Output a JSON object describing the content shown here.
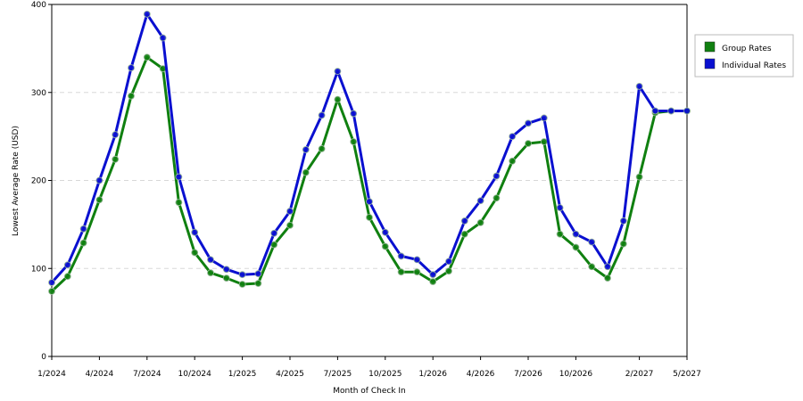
{
  "chart_data": {
    "type": "line",
    "title": "",
    "xlabel": "Month of Check In",
    "ylabel": "Lowest Average Rate (USD)",
    "ylim": [
      0,
      400
    ],
    "yticks": [
      0,
      100,
      200,
      300,
      400
    ],
    "x": [
      "1/2024",
      "2/2024",
      "3/2024",
      "4/2024",
      "5/2024",
      "6/2024",
      "7/2024",
      "8/2024",
      "9/2024",
      "10/2024",
      "11/2024",
      "12/2024",
      "1/2025",
      "2/2025",
      "3/2025",
      "4/2025",
      "5/2025",
      "6/2025",
      "7/2025",
      "8/2025",
      "9/2025",
      "10/2025",
      "11/2025",
      "12/2025",
      "1/2026",
      "2/2026",
      "3/2026",
      "4/2026",
      "5/2026",
      "6/2026",
      "7/2026",
      "8/2026",
      "9/2026",
      "10/2026",
      "11/2026",
      "12/2026",
      "1/2027",
      "2/2027",
      "3/2027",
      "4/2027",
      "5/2027"
    ],
    "x_tick_labels": [
      {
        "index": 0,
        "label": "1/2024"
      },
      {
        "index": 3,
        "label": "4/2024"
      },
      {
        "index": 6,
        "label": "7/2024"
      },
      {
        "index": 9,
        "label": "10/2024"
      },
      {
        "index": 12,
        "label": "1/2025"
      },
      {
        "index": 15,
        "label": "4/2025"
      },
      {
        "index": 18,
        "label": "7/2025"
      },
      {
        "index": 21,
        "label": "10/2025"
      },
      {
        "index": 24,
        "label": "1/2026"
      },
      {
        "index": 27,
        "label": "4/2026"
      },
      {
        "index": 30,
        "label": "7/2026"
      },
      {
        "index": 33,
        "label": "10/2026"
      },
      {
        "index": 37,
        "label": "2/2027"
      },
      {
        "index": 40,
        "label": "5/2027"
      }
    ],
    "grid": true,
    "legend_position": "top-right",
    "series": [
      {
        "name": "Group Rates",
        "color": "#108010",
        "values": [
          74,
          91,
          129,
          178,
          224,
          296,
          340,
          327,
          175,
          118,
          95,
          89,
          82,
          83,
          127,
          149,
          209,
          236,
          292,
          244,
          158,
          125,
          96,
          96,
          85,
          97,
          139,
          152,
          180,
          222,
          242,
          244,
          139,
          124,
          102,
          89,
          128,
          204,
          277,
          279,
          279
        ]
      },
      {
        "name": "Individual Rates",
        "color": "#0a10d0",
        "values": [
          84,
          104,
          145,
          200,
          252,
          328,
          389,
          362,
          204,
          141,
          110,
          99,
          93,
          94,
          140,
          165,
          235,
          274,
          324,
          276,
          176,
          141,
          114,
          110,
          93,
          108,
          154,
          177,
          205,
          250,
          265,
          271,
          169,
          139,
          130,
          102,
          154,
          307,
          279,
          279,
          279
        ]
      }
    ]
  }
}
